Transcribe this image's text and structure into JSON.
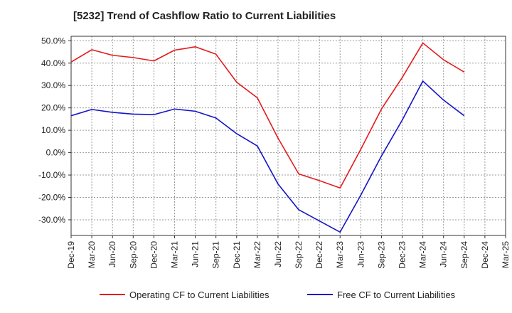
{
  "chart_data": {
    "type": "line",
    "title": "[5232]  Trend of Cashflow Ratio to Current Liabilities",
    "xlabel": "",
    "ylabel": "",
    "ylim": [
      -37,
      52
    ],
    "yticks": [
      50,
      40,
      30,
      20,
      10,
      0,
      -10,
      -20,
      -30
    ],
    "ytick_labels": [
      "50.0%",
      "40.0%",
      "30.0%",
      "20.0%",
      "10.0%",
      "0.0%",
      "-10.0%",
      "-20.0%",
      "-30.0%"
    ],
    "categories": [
      "Dec-19",
      "Mar-20",
      "Jun-20",
      "Sep-20",
      "Dec-20",
      "Mar-21",
      "Jun-21",
      "Sep-21",
      "Dec-21",
      "Mar-22",
      "Jun-22",
      "Sep-22",
      "Dec-22",
      "Mar-23",
      "Jun-23",
      "Sep-23",
      "Dec-23",
      "Mar-24",
      "Jun-24",
      "Sep-24",
      "Dec-24",
      "Mar-25"
    ],
    "grid": true,
    "legend_position": "bottom",
    "series": [
      {
        "name": "Operating CF to Current Liabilities",
        "color": "#e31a1c",
        "values": [
          40.5,
          46.0,
          43.5,
          42.5,
          41.0,
          45.8,
          47.3,
          44.0,
          31.5,
          24.5,
          6.5,
          -9.5,
          -12.5,
          -15.8,
          1.5,
          19.5,
          33.5,
          49.0,
          41.5,
          36.0,
          null,
          null
        ]
      },
      {
        "name": "Free CF to Current Liabilities",
        "color": "#1414c8",
        "values": [
          16.5,
          19.3,
          18.0,
          17.2,
          17.0,
          19.5,
          18.5,
          15.5,
          8.5,
          3.0,
          -14.0,
          -25.5,
          -30.5,
          -35.5,
          -19.0,
          -1.5,
          14.5,
          32.0,
          23.5,
          16.5,
          null,
          null
        ]
      }
    ]
  }
}
